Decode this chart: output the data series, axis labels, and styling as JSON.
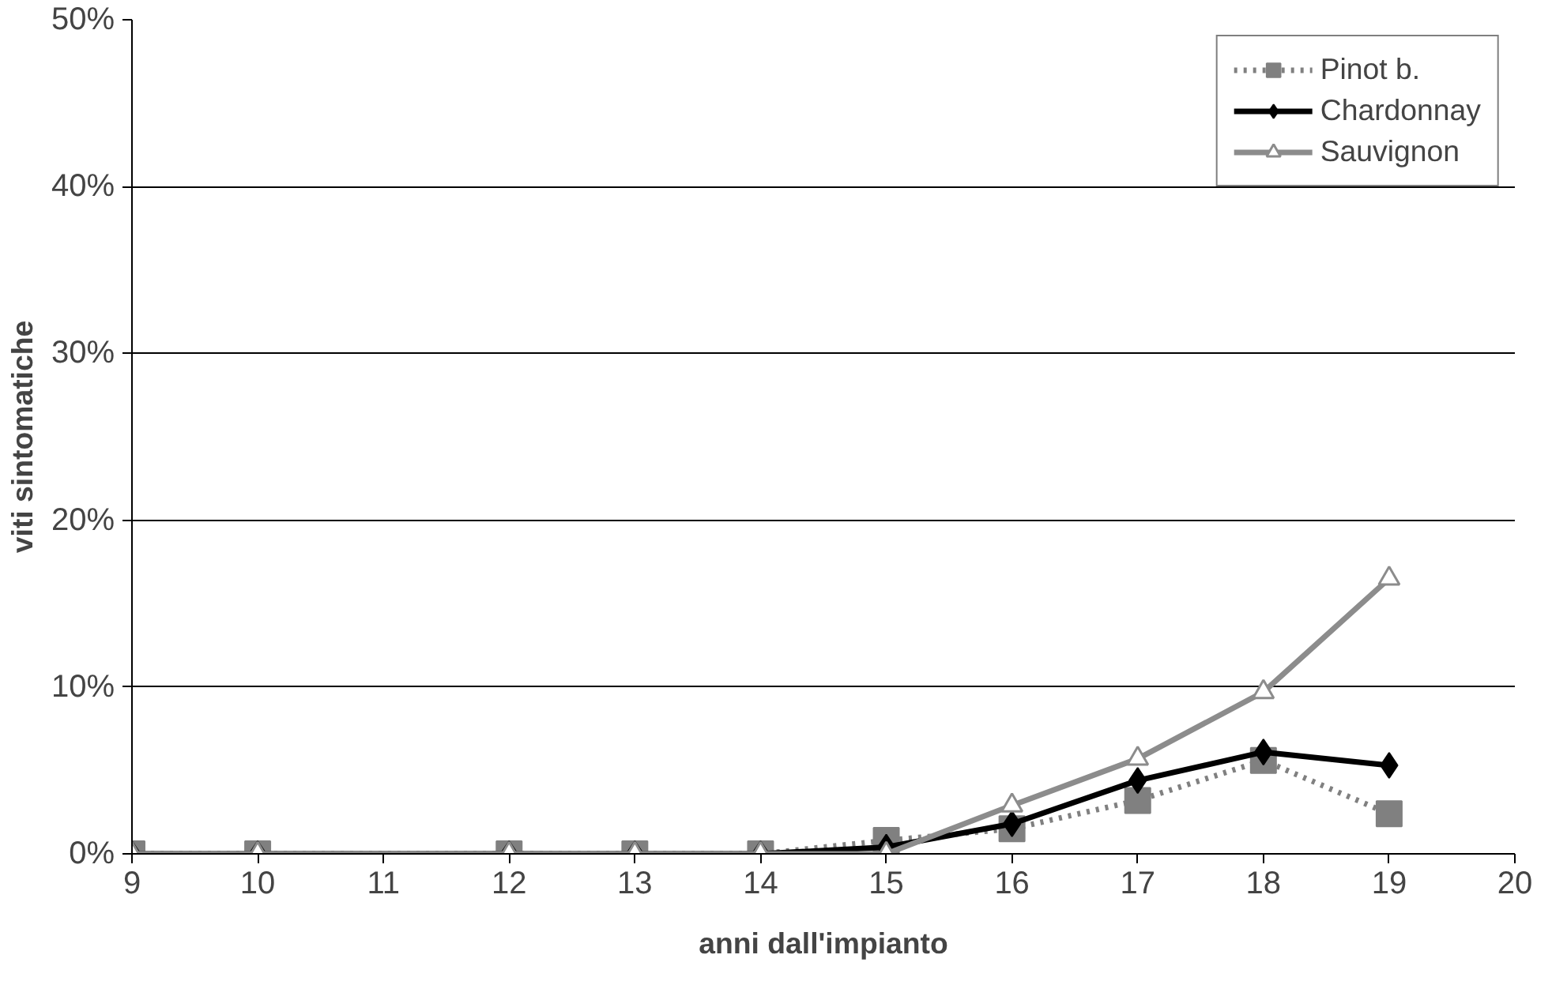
{
  "chart_data": {
    "type": "line",
    "xlabel": "anni dall'impianto",
    "ylabel": "viti sintomatiche",
    "xlim": [
      9,
      20
    ],
    "xticks": [
      9,
      10,
      11,
      12,
      13,
      14,
      15,
      16,
      17,
      18,
      19,
      20
    ],
    "ylim": [
      0,
      50
    ],
    "yticks": [
      {
        "value": 0,
        "label": "0%"
      },
      {
        "value": 10,
        "label": "10%"
      },
      {
        "value": 20,
        "label": "20%"
      },
      {
        "value": 30,
        "label": "30%"
      },
      {
        "value": 40,
        "label": "40%"
      },
      {
        "value": 50,
        "label": "50%"
      }
    ],
    "grid": "y",
    "legend": "top right",
    "x": [
      9,
      10,
      12,
      13,
      14,
      15,
      16,
      17,
      18,
      19
    ],
    "series": [
      {
        "name": "Pinot b.",
        "color": "#808080",
        "marker": "square",
        "line_style": "dotted",
        "values": [
          0,
          0,
          0,
          0,
          0,
          0.8,
          1.5,
          3.2,
          5.6,
          2.4
        ]
      },
      {
        "name": "Chardonnay",
        "color": "#000000",
        "marker": "diamond",
        "line_style": "solid",
        "values": [
          0,
          0,
          0,
          0,
          0,
          0.4,
          1.8,
          4.4,
          6.1,
          5.3
        ]
      },
      {
        "name": "Sauvignon",
        "color": "#8c8c8c",
        "marker": "triangle",
        "line_style": "solid",
        "values": [
          0,
          0,
          0,
          0,
          0,
          0,
          2.9,
          5.7,
          9.7,
          16.5
        ]
      }
    ]
  }
}
